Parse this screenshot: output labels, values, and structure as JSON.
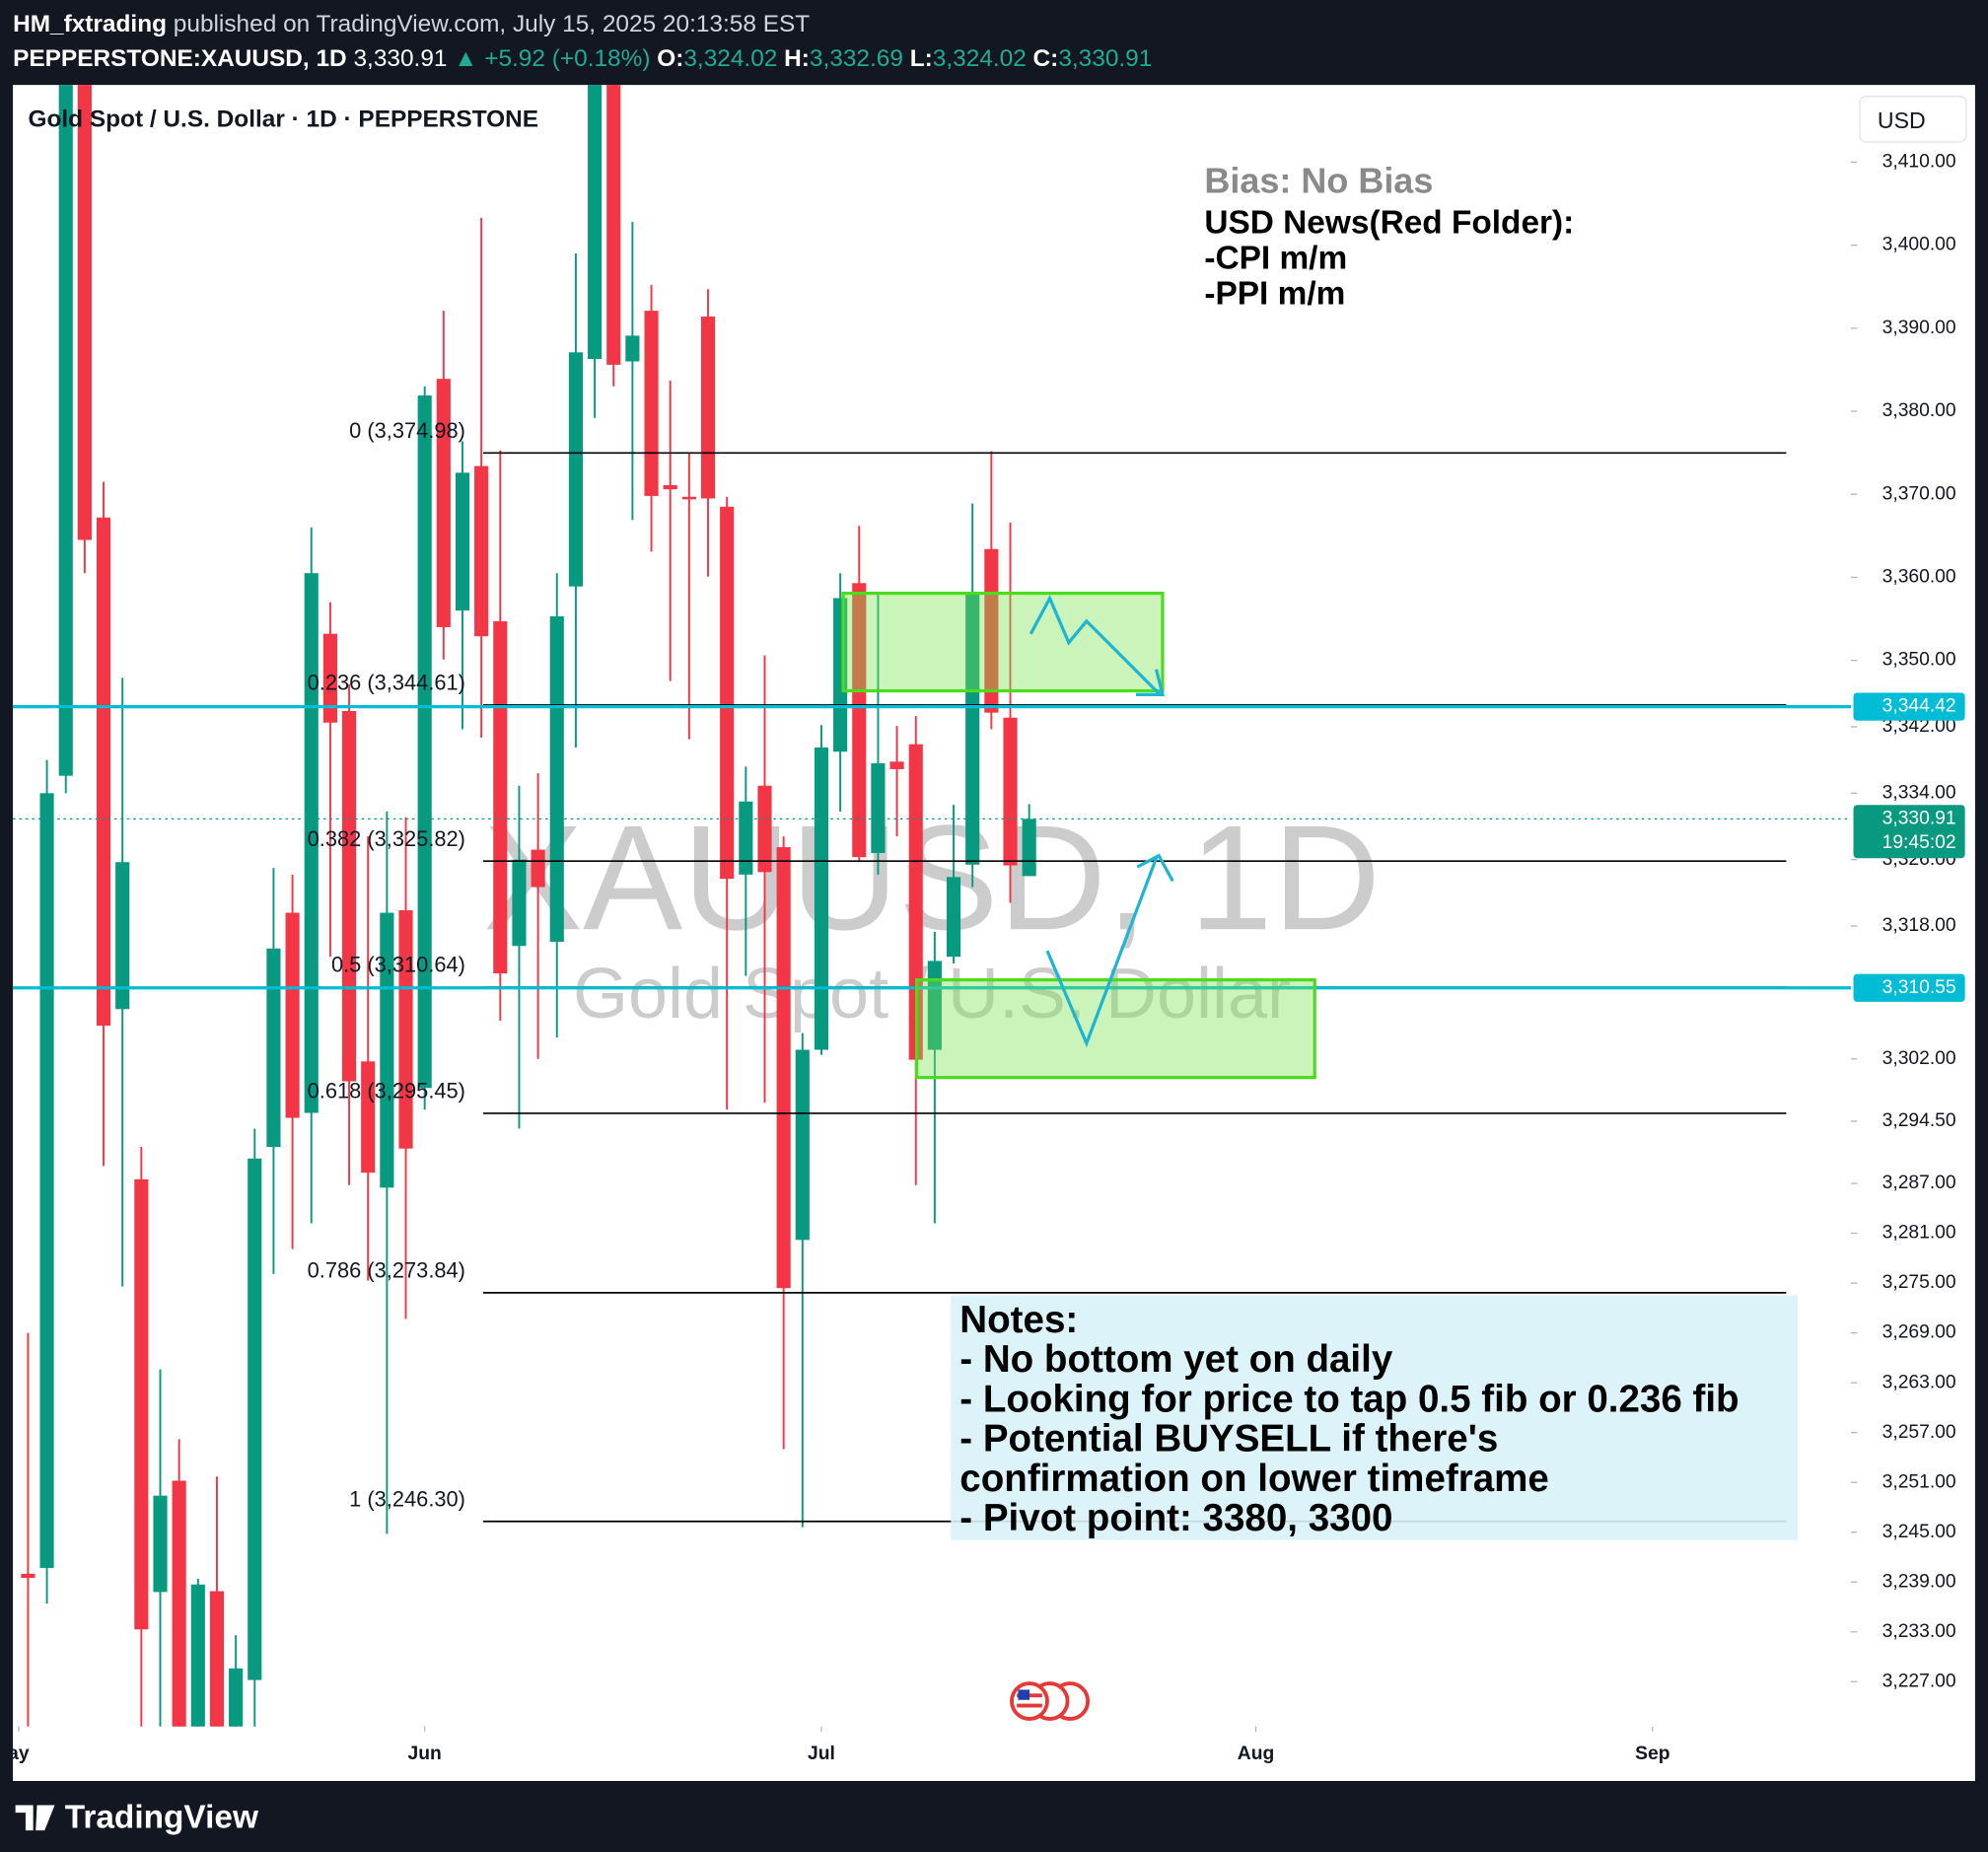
{
  "header": {
    "author": "HM_fxtrading",
    "published": "published on TradingView.com, July 15, 2025 20:13:58 EST",
    "symbol": "PEPPERSTONE:XAUUSD, 1D",
    "last": "3,330.91",
    "arrow": "▲",
    "change": "+5.92 (+0.18%)",
    "ohlc": [
      {
        "label": "O:",
        "value": "3,324.02"
      },
      {
        "label": "H:",
        "value": "3,332.69"
      },
      {
        "label": "L:",
        "value": "3,324.02"
      },
      {
        "label": "C:",
        "value": "3,330.91"
      }
    ]
  },
  "chart_data": {
    "type": "candlestick",
    "title": "Gold Spot / U.S. Dollar · 1D · PEPPERSTONE",
    "watermark": "XAUUSD, 1D",
    "watermark_subtitle": "Gold Spot / U.S. Dollar",
    "currency": "USD",
    "up_color": "#089981",
    "down_color": "#f23645",
    "open": [
      3240,
      3240.7,
      3336.1,
      3440,
      3367.2,
      3308,
      3287.5,
      3237.8,
      3251.2,
      3220,
      3237.9,
      3221,
      3227.2,
      3291.4,
      3319.6,
      3295.5,
      3353.2,
      3343.9,
      3301.7,
      3286.5,
      3319.9,
      3298.5,
      3383.9,
      3356,
      3373.4,
      3354.7,
      3315.6,
      3327.2,
      3316.1,
      3358.9,
      3386.3,
      3428,
      3386,
      3392.1,
      3371.1,
      3369.7,
      3391.4,
      3368.5,
      3324.2,
      3334.9,
      3327.5,
      3280.2,
      3303.1,
      3339,
      3359.3,
      3326.8,
      3337.8,
      3339.9,
      3303.1,
      3314.3,
      3325.4,
      3363.4,
      3343.1,
      3324.02
    ],
    "high": [
      3269,
      3338,
      3440,
      3445,
      3371.5,
      3347.9,
      3291.4,
      3264.6,
      3256.2,
      3239.4,
      3251.7,
      3232.6,
      3293.6,
      3325,
      3324.2,
      3366,
      3357,
      3347.1,
      3328.8,
      3331.8,
      3331.1,
      3383,
      3392.1,
      3376.4,
      3403.3,
      3375.3,
      3334.9,
      3336.4,
      3360.5,
      3399,
      3430,
      3432,
      3402.8,
      3395.2,
      3383.7,
      3374.9,
      3394.7,
      3369.7,
      3337.2,
      3350.6,
      3328.8,
      3305.1,
      3342.2,
      3360.5,
      3366.2,
      3358.1,
      3342.1,
      3343.3,
      3317.3,
      3332.6,
      3368.9,
      3375.2,
      3366.6,
      3332.69
    ],
    "low": [
      3215,
      3236.4,
      3334,
      3360.5,
      3289.1,
      3274.6,
      3215,
      3215,
      3212,
      3214,
      3213,
      3215,
      3221,
      3276.1,
      3279.1,
      3282.2,
      3314.3,
      3286.8,
      3275.3,
      3244.8,
      3270.7,
      3295.9,
      3350.1,
      3341.7,
      3340.7,
      3306.6,
      3293.6,
      3302,
      3304.6,
      3339.5,
      3379.2,
      3383,
      3366.9,
      3363.1,
      3347.5,
      3340.5,
      3360.1,
      3295.9,
      3312,
      3296.7,
      3255,
      3245.6,
      3302.5,
      3331.8,
      3325.7,
      3324.2,
      3328.8,
      3286.8,
      3282.2,
      3313.5,
      3322.7,
      3341.7,
      3320.8,
      3324.02
    ],
    "close": [
      3239.5,
      3334,
      3436,
      3364.5,
      3306,
      3325.7,
      3233.3,
      3249.4,
      3218,
      3238.7,
      3219,
      3228.6,
      3290,
      3315.3,
      3294.9,
      3360.5,
      3342.5,
      3299.3,
      3288.3,
      3319.6,
      3291.2,
      3381.9,
      3354,
      3372.6,
      3352.9,
      3312.3,
      3326,
      3322.7,
      3355.3,
      3387.1,
      3425,
      3385.6,
      3389.1,
      3369.8,
      3370.6,
      3369.4,
      3369.5,
      3323.7,
      3333,
      3324.5,
      3274.4,
      3303.1,
      3339.5,
      3357.5,
      3326.3,
      3337.6,
      3336.9,
      3301.9,
      3313.8,
      3323.9,
      3358.1,
      3343.7,
      3325.3,
      3330.91
    ],
    "ylim": [
      3221.6,
      3419.3
    ],
    "yticks": [
      {
        "value": 3410,
        "label": "3,410.00"
      },
      {
        "value": 3400,
        "label": "3,400.00"
      },
      {
        "value": 3390,
        "label": "3,390.00"
      },
      {
        "value": 3380,
        "label": "3,380.00"
      },
      {
        "value": 3370,
        "label": "3,370.00"
      },
      {
        "value": 3360,
        "label": "3,360.00"
      },
      {
        "value": 3350,
        "label": "3,350.00"
      },
      {
        "value": 3342,
        "label": "3,342.00"
      },
      {
        "value": 3334,
        "label": "3,334.00"
      },
      {
        "value": 3326,
        "label": "3,326.00"
      },
      {
        "value": 3318,
        "label": "3,318.00"
      },
      {
        "value": 3302,
        "label": "3,302.00"
      },
      {
        "value": 3294.5,
        "label": "3,294.50"
      },
      {
        "value": 3287,
        "label": "3,287.00"
      },
      {
        "value": 3281,
        "label": "3,281.00"
      },
      {
        "value": 3275,
        "label": "3,275.00"
      },
      {
        "value": 3269,
        "label": "3,269.00"
      },
      {
        "value": 3263,
        "label": "3,263.00"
      },
      {
        "value": 3257,
        "label": "3,257.00"
      },
      {
        "value": 3251,
        "label": "3,251.00"
      },
      {
        "value": 3245,
        "label": "3,245.00"
      },
      {
        "value": 3239,
        "label": "3,239.00"
      },
      {
        "value": 3233,
        "label": "3,233.00"
      },
      {
        "value": 3227,
        "label": "3,227.00"
      }
    ],
    "xlim": [
      -0.8,
      96.5
    ],
    "xticks": [
      {
        "value": -0.5,
        "label": "ay"
      },
      {
        "value": 21,
        "label": "Jun"
      },
      {
        "value": 42,
        "label": "Jul"
      },
      {
        "value": 65,
        "label": "Aug"
      },
      {
        "value": 86,
        "label": "Sep"
      }
    ],
    "fib_levels": [
      {
        "value": 3374.98,
        "label": "0 (3,374.98)"
      },
      {
        "value": 3344.61,
        "label": "0.236 (3,344.61)"
      },
      {
        "value": 3325.82,
        "label": "0.382 (3,325.82)"
      },
      {
        "value": 3310.64,
        "label": "0.5 (3,310.64)"
      },
      {
        "value": 3295.45,
        "label": "0.618 (3,295.45)"
      },
      {
        "value": 3273.84,
        "label": "0.786 (3,273.84)"
      },
      {
        "value": 3246.3,
        "label": "1 (3,246.30)"
      }
    ],
    "horizontal_lines": [
      {
        "value": 3344.42,
        "label": "3,344.42",
        "color": "#00bcd4"
      },
      {
        "value": 3310.55,
        "label": "3,310.55",
        "color": "#00bcd4"
      }
    ],
    "last_price": {
      "value": 3330.91,
      "label": "3,330.91",
      "countdown": "19:45:02",
      "color": "#089981"
    },
    "bias": "Bias: No Bias",
    "news": [
      "USD News(Red Folder):",
      "-CPI m/m",
      "-PPI m/m"
    ]
  },
  "notes": [
    "Notes:",
    "- No bottom yet on daily",
    "- Looking for price to tap 0.5 fib or 0.236 fib",
    "- Potential BUYSELL if there's",
    "confirmation on lower timeframe",
    "- Pivot point: 3380, 3300"
  ],
  "footer": {
    "brand": "TradingView"
  }
}
